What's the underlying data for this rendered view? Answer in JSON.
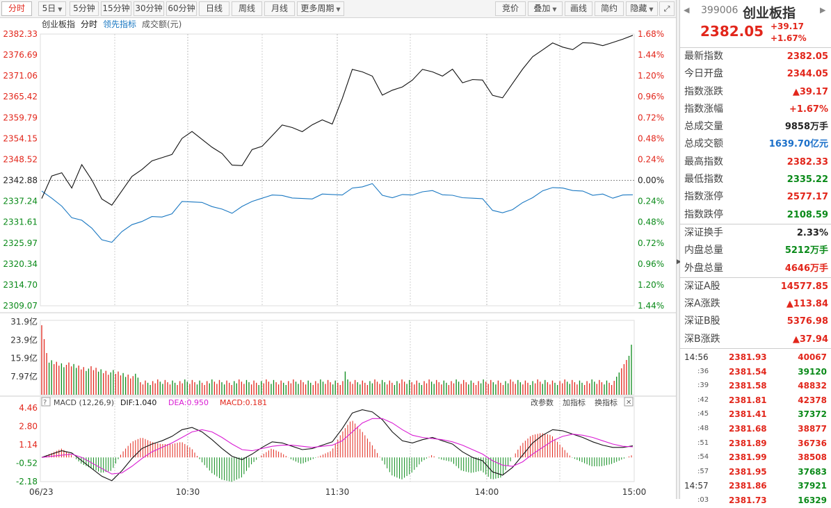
{
  "toolbar": {
    "periods": [
      "分时",
      "5日",
      "5分钟",
      "15分钟",
      "30分钟",
      "60分钟",
      "日线",
      "周线",
      "月线",
      "更多周期"
    ],
    "right_buttons": [
      "竞价",
      "叠加",
      "画线",
      "简约",
      "隐藏"
    ]
  },
  "chart": {
    "legend": {
      "name": "创业板指",
      "mode": "分时",
      "leading": "领先指标",
      "amount": "成交额(元)"
    },
    "price_ticks": [
      "2382.33",
      "2376.69",
      "2371.06",
      "2365.42",
      "2359.79",
      "2354.15",
      "2348.52",
      "2342.88",
      "2337.24",
      "2331.61",
      "2325.97",
      "2320.34",
      "2314.70",
      "2309.07"
    ],
    "pct_ticks": [
      "1.68%",
      "1.44%",
      "1.20%",
      "0.96%",
      "0.72%",
      "0.48%",
      "0.24%",
      "0.00%",
      "0.24%",
      "0.48%",
      "0.72%",
      "0.96%",
      "1.20%",
      "1.44%"
    ],
    "volume_ticks": [
      "31.9亿",
      "23.9亿",
      "15.9亿",
      "7.97亿"
    ],
    "macd_ticks": [
      "4.46",
      "2.80",
      "1.14",
      "-0.52",
      "-2.18"
    ],
    "macd_header": {
      "name": "MACD (12,26,9)",
      "dif": "DIF:1.040",
      "dea": "DEA:0.950",
      "macd": "MACD:0.181",
      "change_param": "改参数",
      "add_ind": "加指标",
      "swap_ind": "换指标"
    },
    "time_labels": [
      "06/23",
      "10:30",
      "11:30",
      "14:00",
      "15:00"
    ],
    "colors": {
      "up": "#e2261b",
      "down": "#0a8a19",
      "price_line": "#111111",
      "avg_line": "#1a78c2",
      "dea_line": "#d91cd3",
      "grid": "#cccccc"
    }
  },
  "chart_data": {
    "type": "line",
    "title": "创业板指 分时",
    "x_labels": [
      "06/23",
      "10:30",
      "11:30",
      "14:00",
      "15:00"
    ],
    "ylim": [
      2309.07,
      2382.33
    ],
    "series": [
      {
        "name": "创业板指",
        "values": [
          2338,
          2344,
          2345,
          2341,
          2347,
          2343,
          2338,
          2336,
          2340,
          2344,
          2346,
          2348,
          2349,
          2350,
          2354,
          2356,
          2354,
          2352,
          2350,
          2347,
          2347,
          2351,
          2352,
          2355,
          2358,
          2357,
          2356,
          2358,
          2359,
          2358,
          2365,
          2373,
          2372,
          2371,
          2366,
          2367,
          2368,
          2370,
          2373,
          2372,
          2371,
          2373,
          2369,
          2370,
          2370,
          2366,
          2365,
          2369,
          2373,
          2376,
          2378,
          2380,
          2379,
          2378,
          2380,
          2380,
          2379,
          2380,
          2381,
          2382
        ]
      },
      {
        "name": "领先指标",
        "values": [
          2340,
          2338,
          2336,
          2333,
          2332,
          2330,
          2327,
          2326,
          2329,
          2331,
          2332,
          2333,
          2333,
          2334,
          2337,
          2337,
          2337,
          2336,
          2335,
          2334,
          2336,
          2337,
          2338,
          2339,
          2339,
          2338,
          2338,
          2338,
          2339,
          2339,
          2339,
          2341,
          2341,
          2342,
          2339,
          2338,
          2339,
          2339,
          2340,
          2340,
          2339,
          2339,
          2338,
          2338,
          2338,
          2335,
          2334,
          2335,
          2337,
          2338,
          2340,
          2341,
          2341,
          2340,
          2340,
          2339,
          2339,
          2338,
          2339,
          2339
        ]
      }
    ],
    "volume_ylim": [
      0,
      31.9
    ],
    "macd": {
      "ylim": [
        -2.18,
        4.46
      ],
      "dif": [
        0,
        0.3,
        0.6,
        0.4,
        -0.3,
        -1.0,
        -1.7,
        -2.1,
        -1.2,
        -0.1,
        0.8,
        1.2,
        1.5,
        1.9,
        2.5,
        2.7,
        2.3,
        1.6,
        0.8,
        0.1,
        -0.2,
        0.3,
        0.9,
        1.4,
        1.3,
        1.0,
        0.7,
        0.8,
        1.1,
        1.4,
        2.6,
        4.0,
        4.3,
        4.1,
        3.4,
        2.3,
        1.5,
        1.3,
        1.6,
        1.8,
        1.5,
        1.2,
        0.5,
        0.0,
        -0.3,
        -1.3,
        -1.6,
        -0.9,
        0.2,
        1.3,
        2.0,
        2.5,
        2.4,
        2.1,
        1.8,
        1.4,
        1.1,
        0.9,
        0.9,
        1.04
      ],
      "dea": [
        0,
        0.1,
        0.2,
        0.3,
        0.0,
        -0.5,
        -1.0,
        -1.5,
        -1.4,
        -0.8,
        -0.1,
        0.5,
        0.9,
        1.3,
        1.8,
        2.3,
        2.5,
        2.3,
        1.8,
        1.2,
        0.7,
        0.6,
        0.8,
        1.0,
        1.1,
        1.1,
        1.0,
        0.9,
        1.0,
        1.1,
        1.5,
        2.3,
        3.1,
        3.5,
        3.5,
        3.1,
        2.5,
        2.0,
        1.8,
        1.7,
        1.6,
        1.4,
        1.1,
        0.7,
        0.3,
        -0.3,
        -0.7,
        -0.8,
        -0.4,
        0.3,
        0.9,
        1.5,
        1.9,
        2.1,
        2.0,
        1.8,
        1.5,
        1.2,
        1.0,
        0.95
      ]
    }
  },
  "panel": {
    "code": "399006",
    "name": "创业板指",
    "price": "2382.05",
    "change": "+39.17",
    "change_pct": "+1.67%",
    "stats": [
      {
        "k": "最新指数",
        "v": "2382.05",
        "c": "red"
      },
      {
        "k": "今日开盘",
        "v": "2344.05",
        "c": "red"
      },
      {
        "k": "指数涨跌",
        "v": "▲39.17",
        "c": "red"
      },
      {
        "k": "指数涨幅",
        "v": "+1.67%",
        "c": "red"
      },
      {
        "k": "总成交量",
        "v": "9858万手",
        "c": "dark"
      },
      {
        "k": "总成交额",
        "v": "1639.70亿元",
        "c": "blue"
      },
      {
        "k": "最高指数",
        "v": "2382.33",
        "c": "red"
      },
      {
        "k": "最低指数",
        "v": "2335.22",
        "c": "green"
      },
      {
        "k": "指数涨停",
        "v": "2577.17",
        "c": "red"
      },
      {
        "k": "指数跌停",
        "v": "2108.59",
        "c": "green"
      }
    ],
    "stats2": [
      {
        "k": "深证换手",
        "v": "2.33%",
        "c": "dark"
      },
      {
        "k": "内盘总量",
        "v": "5212万手",
        "c": "green"
      },
      {
        "k": "外盘总量",
        "v": "4646万手",
        "c": "red"
      }
    ],
    "stats3": [
      {
        "k": "深证A股",
        "v": "14577.85",
        "c": "red"
      },
      {
        "k": "深A涨跌",
        "v": "▲113.84",
        "c": "red"
      },
      {
        "k": "深证B股",
        "v": "5376.98",
        "c": "red"
      },
      {
        "k": "深B涨跌",
        "v": "▲37.94",
        "c": "red"
      }
    ],
    "ticks": [
      {
        "t": "14:56",
        "s": false,
        "p": "2381.93",
        "v": "40067",
        "c": "red"
      },
      {
        "t": ":36",
        "s": true,
        "p": "2381.54",
        "v": "39120",
        "c": "green"
      },
      {
        "t": ":39",
        "s": true,
        "p": "2381.58",
        "v": "48832",
        "c": "red"
      },
      {
        "t": ":42",
        "s": true,
        "p": "2381.81",
        "v": "42378",
        "c": "red"
      },
      {
        "t": ":45",
        "s": true,
        "p": "2381.41",
        "v": "37372",
        "c": "green"
      },
      {
        "t": ":48",
        "s": true,
        "p": "2381.68",
        "v": "38877",
        "c": "red"
      },
      {
        "t": ":51",
        "s": true,
        "p": "2381.89",
        "v": "36736",
        "c": "red"
      },
      {
        "t": ":54",
        "s": true,
        "p": "2381.99",
        "v": "38508",
        "c": "red"
      },
      {
        "t": ":57",
        "s": true,
        "p": "2381.95",
        "v": "37683",
        "c": "green"
      },
      {
        "t": "14:57",
        "s": false,
        "p": "2381.86",
        "v": "37921",
        "c": "green"
      },
      {
        "t": ":03",
        "s": true,
        "p": "2381.73",
        "v": "16329",
        "c": "green"
      }
    ]
  }
}
